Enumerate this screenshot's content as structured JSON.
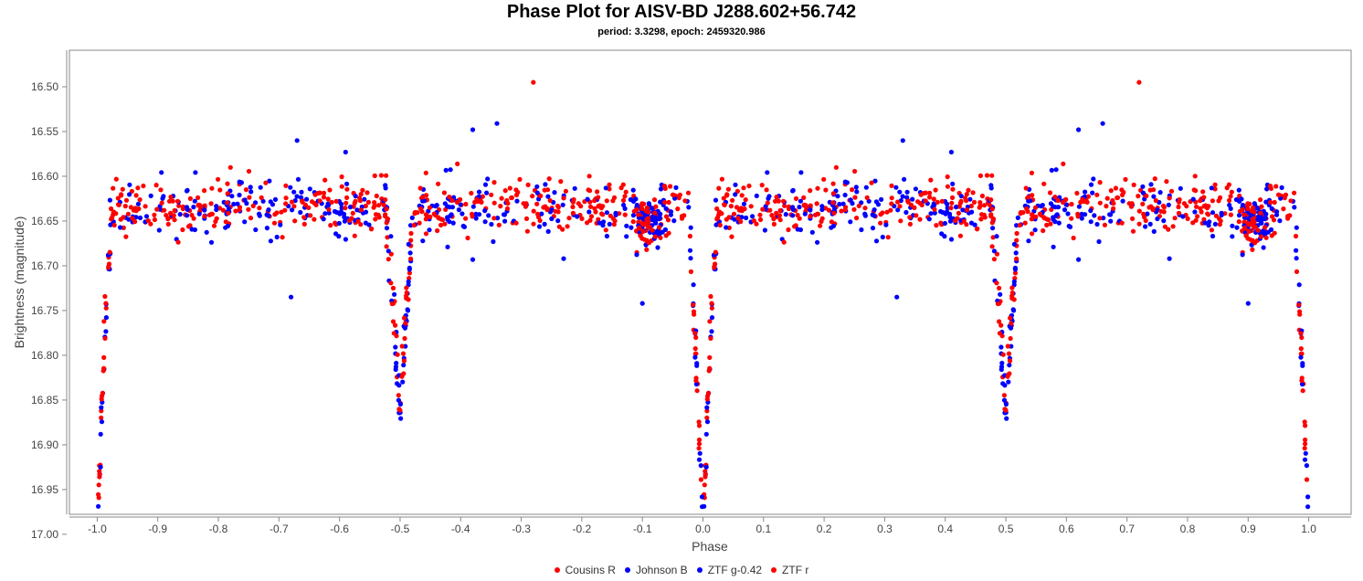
{
  "chart_data": {
    "type": "scatter",
    "title": "Phase Plot for AISV-BD J288.602+56.742",
    "subtitle": "period: 3.3298, epoch: 2459320.986",
    "xlabel": "Phase",
    "ylabel": "Brightness (magnitude)",
    "xlim": [
      -1.1,
      1.1
    ],
    "ylim": [
      17.045,
      16.46
    ],
    "y_inverted": true,
    "x_ticks": [
      "-1.0",
      "-0.9",
      "-0.8",
      "-0.7",
      "-0.6",
      "-0.5",
      "-0.4",
      "-0.3",
      "-0.2",
      "-0.1",
      "0.0",
      "0.1",
      "0.2",
      "0.3",
      "0.4",
      "0.5",
      "0.6",
      "0.7",
      "0.8",
      "0.9",
      "1.0"
    ],
    "y_ticks": [
      "16.50",
      "16.55",
      "16.60",
      "16.65",
      "16.70",
      "16.75",
      "16.80",
      "16.85",
      "16.90",
      "16.95",
      "17.00"
    ],
    "legend_position": "bottom",
    "grid": false,
    "light_curve_shape": {
      "baseline_magnitude": 16.635,
      "baseline_scatter": 0.022,
      "primary_eclipse_phase": 0.0,
      "primary_eclipse_depth": 17.0,
      "secondary_eclipse_phase": 0.5,
      "secondary_eclipse_depth": 16.87,
      "eclipse_half_width": 0.025,
      "dense_cluster_phase": -0.09,
      "dense_cluster_magnitude": 16.65
    },
    "series": [
      {
        "name": "Cousins R",
        "color": "#ff0000",
        "count": 300,
        "seed": 11
      },
      {
        "name": "Johnson B",
        "color": "#0000ff",
        "count": 220,
        "seed": 23
      },
      {
        "name": "ZTF g-0.42",
        "color": "#0000ff",
        "count": 180,
        "seed": 37
      },
      {
        "name": "ZTF r",
        "color": "#ff0000",
        "count": 260,
        "seed": 53
      }
    ],
    "outliers": [
      {
        "series": "ZTF r",
        "x": -0.28,
        "y": 16.495
      },
      {
        "series": "Johnson B",
        "x": -0.38,
        "y": 16.548
      },
      {
        "series": "Johnson B",
        "x": -0.34,
        "y": 16.541
      },
      {
        "series": "ZTF g-0.42",
        "x": -0.68,
        "y": 16.735
      },
      {
        "series": "ZTF g-0.42",
        "x": -0.1,
        "y": 16.742
      },
      {
        "series": "Johnson B",
        "x": -0.67,
        "y": 16.56
      },
      {
        "series": "Johnson B",
        "x": -0.59,
        "y": 16.573
      },
      {
        "series": "ZTF g-0.42",
        "x": -0.23,
        "y": 16.692
      },
      {
        "series": "ZTF g-0.42",
        "x": -0.38,
        "y": 16.693
      }
    ]
  }
}
